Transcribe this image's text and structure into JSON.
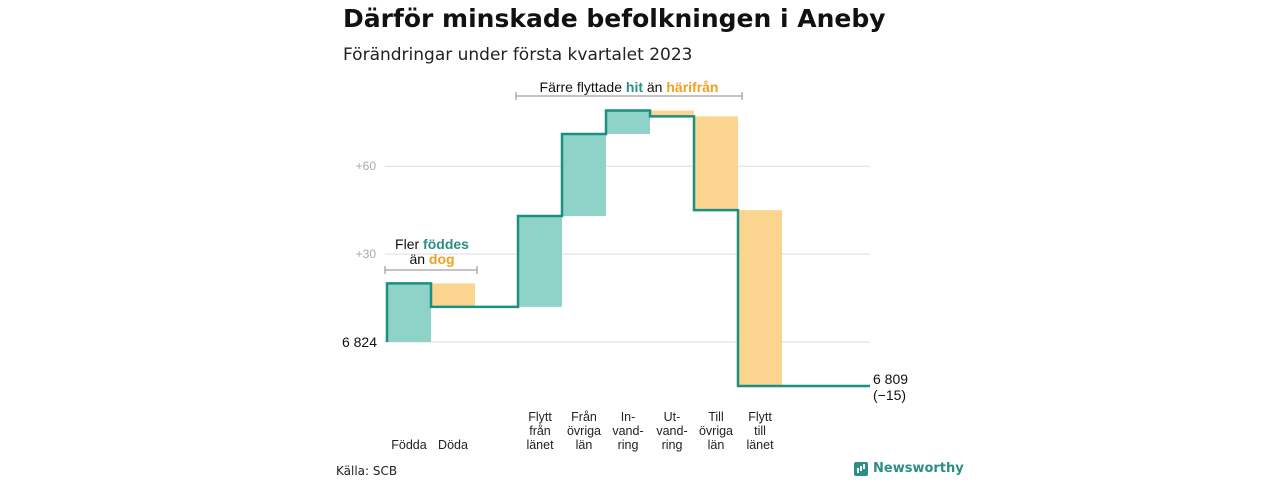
{
  "header": {
    "title": "Därför minskade befolkningen i Aneby",
    "subtitle": "Förändringar under första kvartalet 2023"
  },
  "footer": {
    "source": "Källa: SCB",
    "brand": "Newsworthy"
  },
  "colors": {
    "positive": "#8fd3c8",
    "negative": "#fbd58f",
    "line": "#1a9080",
    "accent_positive": "#2b8f84",
    "accent_negative": "#f0a020",
    "grid": "#dddddd",
    "tick": "#aaaaaa"
  },
  "chart_data": {
    "type": "waterfall",
    "title": "Därför minskade befolkningen i Aneby",
    "subtitle": "Förändringar under första kvartalet 2023",
    "start_value": 6824,
    "start_label": "6 824",
    "end_value": 6809,
    "end_label": "6 809",
    "end_change_label": "(−15)",
    "y_ticks": [
      {
        "value": 30,
        "label": "+30"
      },
      {
        "value": 60,
        "label": "+60"
      }
    ],
    "ylim": [
      -15,
      80
    ],
    "categories": [
      {
        "label": [
          "Födda"
        ],
        "value": 20
      },
      {
        "label": [
          "Döda"
        ],
        "value": -8
      },
      {
        "label": [
          "Flytt",
          "från",
          "länet"
        ],
        "value": 31
      },
      {
        "label": [
          "Från",
          "övriga",
          "län"
        ],
        "value": 28
      },
      {
        "label": [
          "In-",
          "vand-",
          "ring"
        ],
        "value": 8
      },
      {
        "label": [
          "Ut-",
          "vand-",
          "ring"
        ],
        "value": -2
      },
      {
        "label": [
          "Till",
          "övriga",
          "län"
        ],
        "value": -32
      },
      {
        "label": [
          "Flytt",
          "till",
          "länet"
        ],
        "value": -60
      }
    ],
    "annotations": [
      {
        "parts": [
          {
            "text": "Fler ",
            "style": "plain"
          },
          {
            "text": "föddes",
            "style": "positive"
          }
        ],
        "parts2": [
          {
            "text": "än ",
            "style": "plain"
          },
          {
            "text": "dog",
            "style": "negative"
          }
        ],
        "span": [
          0,
          1
        ]
      },
      {
        "parts": [
          {
            "text": "Färre flyttade ",
            "style": "plain"
          },
          {
            "text": "hit",
            "style": "positive"
          },
          {
            "text": " än ",
            "style": "plain"
          },
          {
            "text": "härifrån",
            "style": "negative"
          }
        ],
        "span": [
          2,
          7
        ]
      }
    ]
  }
}
